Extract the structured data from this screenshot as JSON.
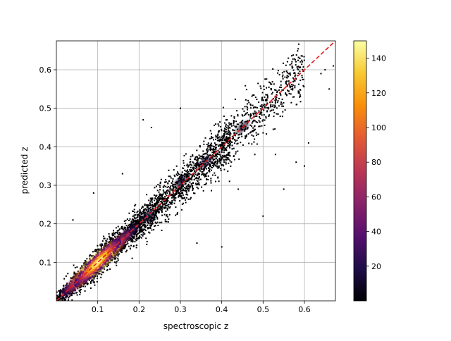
{
  "chart_data": {
    "type": "scatter",
    "xlabel": "spectroscopic z",
    "ylabel": "predicted z",
    "xlim": [
      0.0,
      0.675
    ],
    "ylim": [
      0.0,
      0.675
    ],
    "x_ticks": [
      "0.1",
      "0.2",
      "0.3",
      "0.4",
      "0.5",
      "0.6"
    ],
    "x_tick_values": [
      0.1,
      0.2,
      0.3,
      0.4,
      0.5,
      0.6
    ],
    "y_ticks": [
      "0.1",
      "0.2",
      "0.3",
      "0.4",
      "0.5",
      "0.6"
    ],
    "y_tick_values": [
      0.1,
      0.2,
      0.3,
      0.4,
      0.5,
      0.6
    ],
    "grid": true,
    "colormap": "inferno",
    "colorbar": {
      "ticks": [
        "20",
        "40",
        "60",
        "80",
        "100",
        "120",
        "140"
      ],
      "tick_values": [
        20,
        40,
        60,
        80,
        100,
        120,
        140
      ],
      "range": [
        0,
        150
      ]
    },
    "reference_line": {
      "from": [
        0.0,
        0.0
      ],
      "to": [
        0.675,
        0.675
      ],
      "color": "#e41a1c",
      "style": "dashed"
    },
    "density_core": [
      {
        "x": 0.03,
        "y": 0.03,
        "density": 35
      },
      {
        "x": 0.05,
        "y": 0.05,
        "density": 70
      },
      {
        "x": 0.07,
        "y": 0.07,
        "density": 100
      },
      {
        "x": 0.09,
        "y": 0.09,
        "density": 130
      },
      {
        "x": 0.1,
        "y": 0.1,
        "density": 145
      },
      {
        "x": 0.12,
        "y": 0.12,
        "density": 120
      },
      {
        "x": 0.14,
        "y": 0.14,
        "density": 80
      },
      {
        "x": 0.16,
        "y": 0.16,
        "density": 50
      },
      {
        "x": 0.18,
        "y": 0.18,
        "density": 25
      },
      {
        "x": 0.22,
        "y": 0.22,
        "density": 12
      },
      {
        "x": 0.3,
        "y": 0.31,
        "density": 8
      },
      {
        "x": 0.36,
        "y": 0.36,
        "density": 10
      },
      {
        "x": 0.45,
        "y": 0.45,
        "density": 6
      }
    ],
    "outliers": [
      [
        0.5,
        0.22
      ],
      [
        0.4,
        0.14
      ],
      [
        0.53,
        0.38
      ],
      [
        0.55,
        0.29
      ],
      [
        0.6,
        0.35
      ],
      [
        0.61,
        0.41
      ],
      [
        0.48,
        0.38
      ],
      [
        0.58,
        0.36
      ],
      [
        0.21,
        0.47
      ],
      [
        0.23,
        0.45
      ],
      [
        0.09,
        0.28
      ],
      [
        0.3,
        0.5
      ],
      [
        0.34,
        0.15
      ],
      [
        0.66,
        0.55
      ],
      [
        0.65,
        0.6
      ],
      [
        0.67,
        0.61
      ],
      [
        0.64,
        0.59
      ],
      [
        0.16,
        0.33
      ],
      [
        0.04,
        0.21
      ],
      [
        0.44,
        0.29
      ]
    ]
  }
}
